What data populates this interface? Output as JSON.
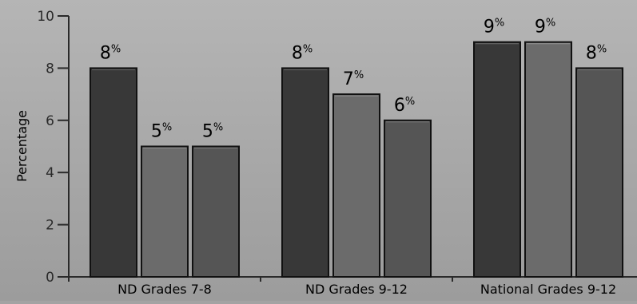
{
  "chart_data": {
    "type": "bar",
    "title": "",
    "xlabel": "",
    "ylabel": "Percentage",
    "ylim": [
      0,
      10
    ],
    "yticks": [
      "0",
      "2",
      "4",
      "6",
      "8",
      "10"
    ],
    "grid": false,
    "categories": [
      "ND Grades 7-8",
      "ND Grades 9-12",
      "National Grades 9-12"
    ],
    "series": [
      {
        "values": [
          8,
          8,
          9
        ],
        "data_labels": [
          "8",
          "8",
          "9"
        ],
        "color": "#383838"
      },
      {
        "values": [
          5,
          7,
          9
        ],
        "data_labels": [
          "5",
          "7",
          "9"
        ],
        "color": "#6b6b6b"
      },
      {
        "values": [
          5,
          6,
          8
        ],
        "data_labels": [
          "5",
          "6",
          "8"
        ],
        "color": "#555555"
      }
    ],
    "label_suffix": "%"
  }
}
